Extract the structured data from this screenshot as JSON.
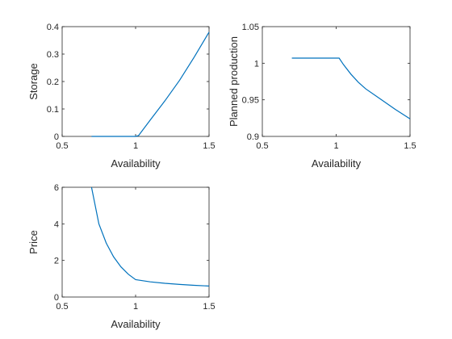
{
  "chart_data": [
    {
      "type": "line",
      "xlabel": "Availability",
      "ylabel": "Storage",
      "xlim": [
        0.5,
        1.5
      ],
      "ylim": [
        0,
        0.4
      ],
      "xticks": [
        "0.5",
        "1",
        "1.5"
      ],
      "yticks": [
        "0",
        "0.1",
        "0.2",
        "0.3",
        "0.4"
      ],
      "grid": false,
      "series": [
        {
          "color": "#0072bd",
          "x": [
            0.7,
            0.8,
            0.9,
            1.0,
            1.02,
            1.1,
            1.2,
            1.3,
            1.4,
            1.5
          ],
          "y": [
            0,
            0,
            0,
            0,
            0.003,
            0.06,
            0.13,
            0.205,
            0.29,
            0.38
          ]
        }
      ]
    },
    {
      "type": "line",
      "xlabel": "Availability",
      "ylabel": "Planned production",
      "xlim": [
        0.5,
        1.5
      ],
      "ylim": [
        0.9,
        1.05
      ],
      "xticks": [
        "0.5",
        "1",
        "1.5"
      ],
      "yticks": [
        "0.9",
        "0.95",
        "1",
        "1.05"
      ],
      "grid": false,
      "series": [
        {
          "color": "#0072bd",
          "x": [
            0.7,
            0.8,
            0.9,
            1.0,
            1.02,
            1.05,
            1.1,
            1.15,
            1.2,
            1.3,
            1.4,
            1.5
          ],
          "y": [
            1.007,
            1.007,
            1.007,
            1.007,
            1.007,
            0.998,
            0.985,
            0.974,
            0.965,
            0.951,
            0.937,
            0.924
          ]
        }
      ]
    },
    {
      "type": "line",
      "xlabel": "Availability",
      "ylabel": "Price",
      "xlim": [
        0.5,
        1.5
      ],
      "ylim": [
        0,
        6
      ],
      "xticks": [
        "0.5",
        "1",
        "1.5"
      ],
      "yticks": [
        "0",
        "2",
        "4",
        "6"
      ],
      "grid": false,
      "series": [
        {
          "color": "#0072bd",
          "x": [
            0.7,
            0.75,
            0.8,
            0.85,
            0.9,
            0.95,
            1.0,
            1.1,
            1.2,
            1.3,
            1.4,
            1.5
          ],
          "y": [
            6.0,
            4.0,
            2.95,
            2.2,
            1.65,
            1.25,
            0.95,
            0.83,
            0.75,
            0.69,
            0.64,
            0.6
          ]
        }
      ]
    }
  ]
}
